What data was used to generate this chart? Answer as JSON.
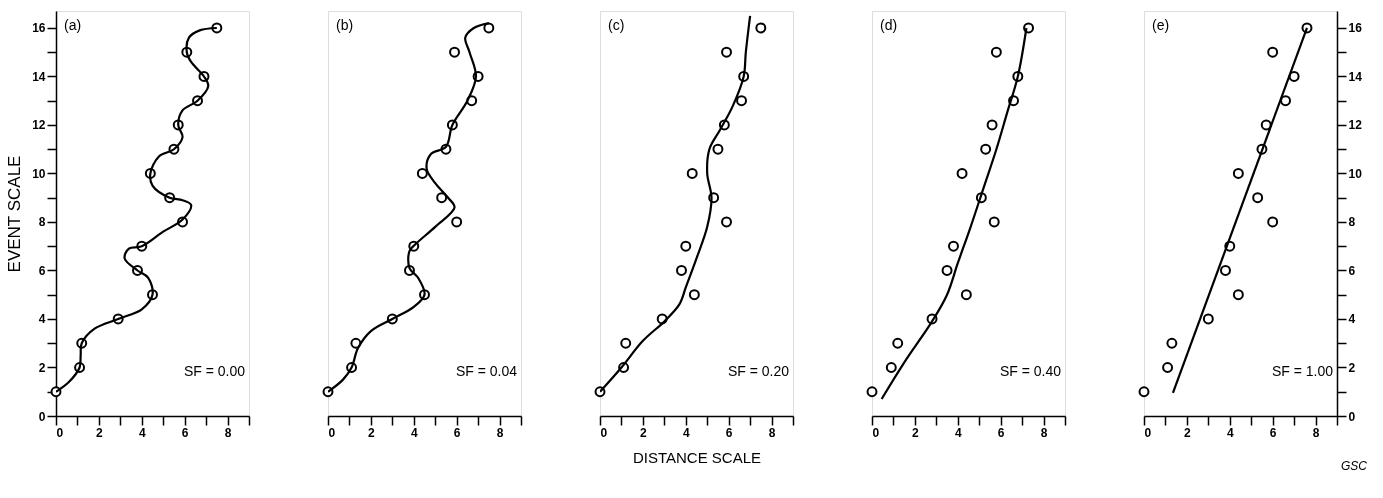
{
  "chart_data": [
    {
      "type": "scatter",
      "ylabel": "EVENT SCALE",
      "annotations": [
        "(a)",
        "SF = 0.00"
      ],
      "xlim": [
        0,
        9
      ],
      "ylim": [
        0,
        16.7
      ],
      "grid": false,
      "legend": false,
      "xticks": [
        0,
        {
          "value": 1,
          "label": null
        },
        2,
        {
          "value": 3,
          "label": null
        },
        4,
        {
          "value": 5,
          "label": null
        },
        6,
        {
          "value": 7,
          "label": null
        },
        8,
        {
          "value": 9,
          "label": null
        }
      ],
      "yticks": [
        0,
        {
          "value": 1,
          "label": null
        },
        2,
        {
          "value": 3,
          "label": null
        },
        4,
        {
          "value": 5,
          "label": null
        },
        6,
        {
          "value": 7,
          "label": null
        },
        8,
        {
          "value": 9,
          "label": null
        },
        10,
        {
          "value": 11,
          "label": null
        },
        12,
        {
          "value": 13,
          "label": null
        },
        14,
        {
          "value": 15,
          "label": null
        },
        16
      ],
      "series": [
        {
          "type": "scatter",
          "marker": "circle",
          "color": "#000000",
          "x": [
            0,
            1.1,
            1.2,
            2.9,
            4.5,
            3.8,
            4.0,
            5.9,
            5.3,
            4.4,
            5.5,
            5.7,
            6.6,
            6.9,
            6.1,
            7.5
          ],
          "values": [
            1,
            2,
            3,
            4,
            5,
            6,
            7,
            8,
            9,
            10,
            11,
            12,
            13,
            14,
            15,
            16
          ]
        },
        {
          "type": "line",
          "marker": "none",
          "color": "#000000",
          "x": [
            0,
            0.6,
            1.1,
            1.15,
            1.2,
            1.8,
            2.9,
            4.0,
            4.5,
            4.3,
            3.8,
            3.2,
            3.4,
            4.0,
            5.0,
            5.9,
            6.3,
            5.9,
            5.3,
            4.5,
            4.4,
            4.8,
            5.5,
            5.9,
            5.7,
            5.9,
            6.6,
            7.1,
            6.9,
            6.3,
            6.1,
            6.2,
            6.7,
            7.5
          ],
          "values": [
            1,
            1.4,
            2,
            2.5,
            3,
            3.6,
            4,
            4.4,
            5,
            5.7,
            6,
            6.5,
            6.9,
            7,
            7.6,
            8.1,
            8.7,
            8.9,
            9,
            9.5,
            10,
            10.7,
            11,
            11.5,
            12,
            12.6,
            13,
            13.6,
            14,
            14.6,
            15,
            15.6,
            15.9,
            16
          ]
        }
      ]
    },
    {
      "type": "scatter",
      "annotations": [
        "(b)",
        "SF = 0.04"
      ],
      "xlim": [
        0,
        9
      ],
      "ylim": [
        0,
        16.7
      ],
      "grid": false,
      "legend": false,
      "tick_labels": "x",
      "xticks": [
        0,
        {
          "value": 1,
          "label": null
        },
        2,
        {
          "value": 3,
          "label": null
        },
        4,
        {
          "value": 5,
          "label": null
        },
        6,
        {
          "value": 7,
          "label": null
        },
        8,
        {
          "value": 9,
          "label": null
        }
      ],
      "series": [
        {
          "type": "scatter",
          "marker": "circle",
          "color": "#000000",
          "x": [
            0,
            1.1,
            1.3,
            3.0,
            4.5,
            3.8,
            4.0,
            6.0,
            5.3,
            4.4,
            5.5,
            5.8,
            6.7,
            7.0,
            5.9,
            7.5
          ],
          "values": [
            1,
            2,
            3,
            4,
            5,
            6,
            7,
            8,
            9,
            10,
            11,
            12,
            13,
            14,
            15,
            16
          ]
        },
        {
          "type": "line",
          "marker": "none",
          "color": "#000000",
          "x": [
            0,
            0.7,
            1.1,
            1.4,
            2.0,
            3.0,
            4.0,
            4.5,
            4.2,
            3.8,
            3.8,
            4.1,
            5.0,
            5.9,
            5.6,
            5.0,
            4.6,
            4.8,
            5.5,
            5.8,
            6.5,
            6.9,
            6.6,
            6.4,
            6.8,
            7.5
          ],
          "values": [
            1,
            1.5,
            2,
            2.8,
            3.5,
            4,
            4.5,
            5,
            5.7,
            6.1,
            6.8,
            7.1,
            7.8,
            8.6,
            9,
            9.6,
            10.2,
            10.8,
            11.1,
            12,
            13,
            14,
            15,
            15.6,
            16,
            16.2
          ]
        }
      ]
    },
    {
      "type": "scatter",
      "xlabel": "DISTANCE SCALE",
      "annotations": [
        "(c)",
        "SF = 0.20"
      ],
      "xlim": [
        0,
        9
      ],
      "ylim": [
        0,
        16.7
      ],
      "grid": false,
      "legend": false,
      "tick_labels": "x",
      "xticks": [
        0,
        {
          "value": 1,
          "label": null
        },
        2,
        {
          "value": 3,
          "label": null
        },
        4,
        {
          "value": 5,
          "label": null
        },
        6,
        {
          "value": 7,
          "label": null
        },
        8,
        {
          "value": 9,
          "label": null
        }
      ],
      "series": [
        {
          "type": "scatter",
          "marker": "circle",
          "color": "#000000",
          "x": [
            0,
            1.1,
            1.2,
            2.9,
            4.4,
            3.8,
            4.0,
            5.9,
            5.3,
            4.3,
            5.5,
            5.8,
            6.6,
            6.7,
            5.9,
            7.5
          ],
          "values": [
            1,
            2,
            3,
            4,
            5,
            6,
            7,
            8,
            9,
            10,
            11,
            12,
            13,
            14,
            15,
            16
          ]
        },
        {
          "type": "line",
          "marker": "none",
          "color": "#000000",
          "x": [
            0,
            1.0,
            2.0,
            3.0,
            3.7,
            4.0,
            4.5,
            5.0,
            5.2,
            5.0,
            5.1,
            5.6,
            6.2,
            6.7,
            6.8,
            7.0
          ],
          "values": [
            1,
            2,
            3.1,
            3.9,
            4.6,
            5.3,
            6.5,
            7.8,
            9,
            10,
            11,
            11.8,
            12.8,
            14,
            15,
            16.5
          ]
        }
      ]
    },
    {
      "type": "scatter",
      "annotations": [
        "(d)",
        "SF = 0.40"
      ],
      "xlim": [
        0,
        9
      ],
      "ylim": [
        0,
        16.7
      ],
      "grid": false,
      "legend": false,
      "tick_labels": "x",
      "xticks": [
        0,
        {
          "value": 1,
          "label": null
        },
        2,
        {
          "value": 3,
          "label": null
        },
        4,
        {
          "value": 5,
          "label": null
        },
        6,
        {
          "value": 7,
          "label": null
        },
        8,
        {
          "value": 9,
          "label": null
        }
      ],
      "series": [
        {
          "type": "scatter",
          "marker": "circle",
          "color": "#000000",
          "x": [
            0,
            0.9,
            1.2,
            2.8,
            4.4,
            3.5,
            3.8,
            5.7,
            5.1,
            4.2,
            5.3,
            5.6,
            6.6,
            6.8,
            5.8,
            7.3
          ],
          "values": [
            1,
            2,
            3,
            4,
            5,
            6,
            7,
            8,
            9,
            10,
            11,
            12,
            13,
            14,
            15,
            16
          ]
        },
        {
          "type": "line",
          "marker": "none",
          "color": "#000000",
          "x": [
            0.45,
            1.5,
            2.8,
            3.5,
            4.0,
            4.6,
            5.2,
            5.8,
            6.3,
            6.8,
            7.2
          ],
          "values": [
            0.7,
            2.2,
            3.9,
            5,
            6.3,
            7.8,
            9.4,
            11,
            12.5,
            14,
            16
          ]
        }
      ]
    },
    {
      "type": "scatter",
      "annotations": [
        "(e)",
        "SF = 1.00",
        "GSC"
      ],
      "xlim": [
        0,
        9
      ],
      "ylim": [
        0,
        16.7
      ],
      "grid": false,
      "legend": false,
      "xticks": [
        0,
        {
          "value": 1,
          "label": null
        },
        2,
        {
          "value": 3,
          "label": null
        },
        4,
        {
          "value": 5,
          "label": null
        },
        6,
        {
          "value": 7,
          "label": null
        },
        8,
        {
          "value": 9,
          "label": null
        }
      ],
      "yticks": [
        0,
        {
          "value": 1,
          "label": null
        },
        2,
        {
          "value": 3,
          "label": null
        },
        4,
        {
          "value": 5,
          "label": null
        },
        6,
        {
          "value": 7,
          "label": null
        },
        8,
        {
          "value": 9,
          "label": null
        },
        10,
        {
          "value": 11,
          "label": null
        },
        12,
        {
          "value": 13,
          "label": null
        },
        14,
        {
          "value": 15,
          "label": null
        },
        16
      ],
      "series": [
        {
          "type": "scatter",
          "marker": "circle",
          "color": "#000000",
          "x": [
            0,
            1.1,
            1.3,
            3.0,
            4.4,
            3.8,
            4.0,
            6.0,
            5.3,
            4.4,
            5.5,
            5.7,
            6.6,
            7.0,
            6.0,
            7.6
          ],
          "values": [
            1,
            2,
            3,
            4,
            5,
            6,
            7,
            8,
            9,
            10,
            11,
            12,
            13,
            14,
            15,
            16
          ]
        },
        {
          "type": "line",
          "marker": "none",
          "color": "#000000",
          "x": [
            1.35,
            7.6
          ],
          "values": [
            0.95,
            16
          ]
        }
      ]
    }
  ]
}
